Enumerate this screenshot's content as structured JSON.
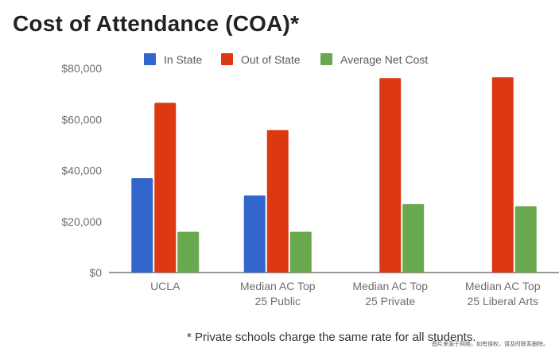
{
  "chart_data": {
    "type": "bar",
    "title": "Cost of Attendance (COA)*",
    "categories": [
      [
        "UCLA"
      ],
      [
        "Median AC Top",
        "25 Public"
      ],
      [
        "Median AC Top",
        "25 Private"
      ],
      [
        "Median AC Top",
        "25 Liberal Arts"
      ]
    ],
    "series": [
      {
        "name": "In State",
        "color": "#3366cc",
        "values": [
          37000,
          30200,
          null,
          null
        ]
      },
      {
        "name": "Out of State",
        "color": "#dc3912",
        "values": [
          66500,
          55800,
          76200,
          76500
        ]
      },
      {
        "name": "Average Net Cost",
        "color": "#6aa84f",
        "values": [
          16000,
          16000,
          26800,
          26000
        ]
      }
    ],
    "ylim": [
      0,
      80000
    ],
    "yticks": [
      0,
      20000,
      40000,
      60000,
      80000
    ],
    "ytick_labels": [
      "$0",
      "$20,000",
      "$40,000",
      "$60,000",
      "$80,000"
    ],
    "grid": false,
    "legend_position": "top",
    "xlabel": "",
    "ylabel": ""
  },
  "footnote": "* Private schools charge the same rate for all students.",
  "watermark": "图片来源于网络，如有侵权，请及时联系删除。"
}
